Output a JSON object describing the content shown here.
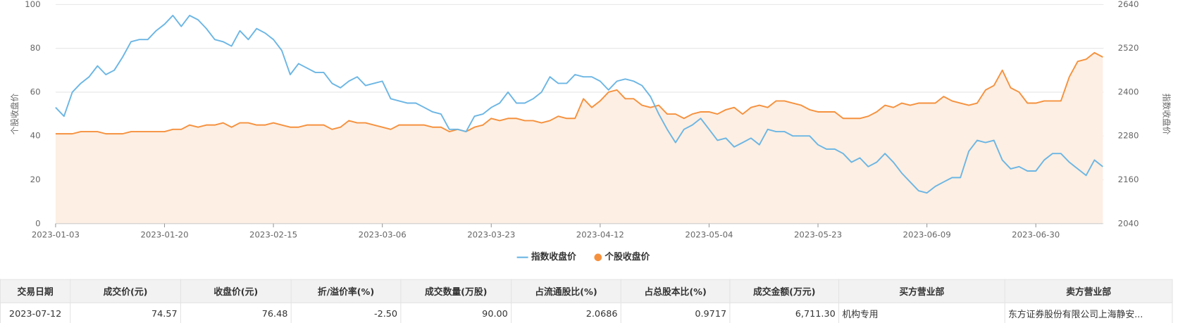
{
  "chart_data": {
    "type": "line",
    "ylabel": "个股收盘价",
    "y2label": "指数收盘价",
    "ylim": [
      0,
      100
    ],
    "yticks": [
      0,
      20,
      40,
      60,
      80,
      100
    ],
    "y2lim": [
      2040,
      2640
    ],
    "y2ticks": [
      2040,
      2160,
      2280,
      2400,
      2520,
      2640
    ],
    "grid": true,
    "legend": "bottom",
    "categories": [
      "2023-01-03",
      null,
      null,
      null,
      null,
      null,
      null,
      null,
      null,
      null,
      null,
      null,
      null,
      "2023-01-20",
      null,
      null,
      null,
      null,
      null,
      null,
      null,
      null,
      null,
      null,
      null,
      null,
      "2023-02-15",
      null,
      null,
      null,
      null,
      null,
      null,
      null,
      null,
      null,
      null,
      null,
      null,
      "2023-03-06",
      null,
      null,
      null,
      null,
      null,
      null,
      null,
      null,
      null,
      null,
      null,
      null,
      "2023-03-23",
      null,
      null,
      null,
      null,
      null,
      null,
      null,
      null,
      null,
      null,
      null,
      null,
      "2023-04-12",
      null,
      null,
      null,
      null,
      null,
      null,
      null,
      null,
      null,
      null,
      null,
      null,
      "2023-05-04",
      null,
      null,
      null,
      null,
      null,
      null,
      null,
      null,
      null,
      null,
      null,
      null,
      "2023-05-23",
      null,
      null,
      null,
      null,
      null,
      null,
      null,
      null,
      null,
      null,
      null,
      null,
      "2023-06-09",
      null,
      null,
      null,
      null,
      null,
      null,
      null,
      null,
      null,
      null,
      null,
      null,
      "2023-06-30",
      null,
      null,
      null,
      null,
      null,
      null,
      null,
      null
    ],
    "series": [
      {
        "name": "指数收盘价",
        "color": "#6cb6e4",
        "axis": "y2",
        "area": false,
        "values": [
          2358,
          2334,
          2400,
          2424,
          2442,
          2472,
          2448,
          2460,
          2496,
          2538,
          2544,
          2544,
          2568,
          2586,
          2610,
          2580,
          2610,
          2598,
          2574,
          2544,
          2538,
          2526,
          2568,
          2544,
          2574,
          2562,
          2544,
          2514,
          2448,
          2478,
          2466,
          2454,
          2454,
          2424,
          2412,
          2430,
          2442,
          2418,
          2424,
          2430,
          2382,
          2376,
          2370,
          2370,
          2358,
          2346,
          2340,
          2298,
          2298,
          2292,
          2334,
          2340,
          2358,
          2370,
          2400,
          2370,
          2370,
          2382,
          2400,
          2442,
          2424,
          2424,
          2448,
          2442,
          2442,
          2430,
          2406,
          2430,
          2436,
          2430,
          2418,
          2388,
          2340,
          2298,
          2262,
          2298,
          2310,
          2328,
          2298,
          2268,
          2274,
          2250,
          2262,
          2274,
          2256,
          2298,
          2292,
          2292,
          2280,
          2280,
          2280,
          2256,
          2244,
          2244,
          2232,
          2208,
          2220,
          2196,
          2208,
          2232,
          2208,
          2178,
          2154,
          2130,
          2124,
          2142,
          2154,
          2166,
          2166,
          2238,
          2268,
          2262,
          2268,
          2214,
          2190,
          2196,
          2184,
          2184,
          2214,
          2232,
          2232,
          2208,
          2190,
          2172,
          2214,
          2196
        ]
      },
      {
        "name": "个股收盘价",
        "color": "#f5913e",
        "area": true,
        "area_color": "#fdefe3",
        "values": [
          41,
          41,
          41,
          42,
          42,
          42,
          41,
          41,
          41,
          42,
          42,
          42,
          42,
          42,
          43,
          43,
          45,
          44,
          45,
          45,
          46,
          44,
          46,
          46,
          45,
          45,
          46,
          45,
          44,
          44,
          45,
          45,
          45,
          43,
          44,
          47,
          46,
          46,
          45,
          44,
          43,
          45,
          45,
          45,
          45,
          44,
          44,
          42,
          43,
          42,
          44,
          45,
          48,
          47,
          48,
          48,
          47,
          47,
          46,
          47,
          49,
          48,
          48,
          57,
          53,
          56,
          60,
          61,
          57,
          57,
          54,
          53,
          54,
          50,
          50,
          48,
          50,
          51,
          51,
          50,
          52,
          53,
          50,
          53,
          54,
          53,
          56,
          56,
          55,
          54,
          52,
          51,
          51,
          51,
          48,
          48,
          48,
          49,
          51,
          54,
          53,
          55,
          54,
          55,
          55,
          55,
          58,
          56,
          55,
          54,
          55,
          61,
          63,
          70,
          62,
          60,
          55,
          55,
          56,
          56,
          56,
          67,
          74,
          75,
          78,
          76
        ]
      }
    ]
  },
  "table": {
    "columns": [
      "交易日期",
      "成交价(元)",
      "收盘价(元)",
      "折/溢价率(%)",
      "成交数量(万股)",
      "占流通股比(%)",
      "占总股本比(%)",
      "成交金额(万元)",
      "买方营业部",
      "卖方营业部"
    ],
    "rows": [
      [
        "2023-07-12",
        "74.57",
        "76.48",
        "-2.50",
        "90.00",
        "2.0686",
        "0.9717",
        "6,711.30",
        "机构专用",
        "东方证券股份有限公司上海静安..."
      ]
    ]
  }
}
